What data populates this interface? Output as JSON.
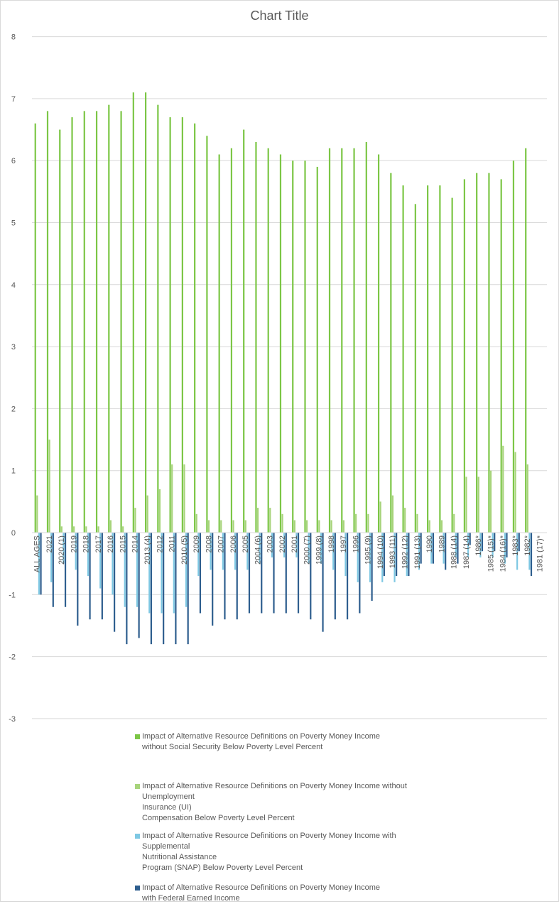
{
  "chart_data": {
    "type": "bar",
    "title": "Chart Title",
    "xlabel": "",
    "ylabel": "",
    "ylim": [
      -3,
      8
    ],
    "y_ticks": [
      -3,
      -2,
      -1,
      0,
      1,
      2,
      3,
      4,
      5,
      6,
      7,
      8
    ],
    "grid": true,
    "legend_position": "bottom",
    "categories": [
      "ALL AGES",
      "2021",
      "2020 (1)",
      "2019",
      "2018",
      "2017",
      "2016",
      "2015",
      "2014",
      "2013 (4)",
      "2012",
      "2011",
      "2010 (5)",
      "2009",
      "2008",
      "2007",
      "2006",
      "2005",
      "2004 (6)",
      "2003",
      "2002",
      "2001",
      "2000 (7)",
      "1999 (8)",
      "1998",
      "1997",
      "1996",
      "1995 (9)",
      "1994 (10)",
      "1993 (11)",
      "1992 (12)",
      "1991 (13)",
      "1990",
      "1989",
      "1988 (14)",
      "1987 (14)",
      "1986*",
      "1985 (15)*",
      "1984 (16)*",
      "1983*",
      "1982*",
      "1981 (17)*"
    ],
    "series": [
      {
        "name": "Impact of Alternative Resource Definitions on Poverty Money Income\nwithout Social Security Below Poverty Level Percent",
        "color": "#7cc646",
        "values": [
          6.6,
          6.8,
          6.5,
          6.7,
          6.8,
          6.8,
          6.9,
          6.8,
          7.1,
          7.1,
          6.9,
          6.7,
          6.7,
          6.6,
          6.4,
          6.1,
          6.2,
          6.5,
          6.3,
          6.2,
          6.1,
          6.0,
          6.0,
          5.9,
          6.2,
          6.2,
          6.2,
          6.3,
          6.1,
          5.8,
          5.6,
          5.3,
          5.6,
          5.6,
          5.4,
          5.7,
          5.8,
          5.8,
          5.7,
          6.0,
          6.2,
          null
        ]
      },
      {
        "name": "Impact of Alternative Resource Definitions on Poverty Money Income without\nUnemployment\nInsurance (UI)\nCompensation Below Poverty Level Percent",
        "color": "#a8d47c",
        "values": [
          0.6,
          1.5,
          0.1,
          0.1,
          0.1,
          0.1,
          0.2,
          0.1,
          0.4,
          0.6,
          0.7,
          1.1,
          1.1,
          0.3,
          0.2,
          0.2,
          0.2,
          0.2,
          0.4,
          0.4,
          0.3,
          0.2,
          0.2,
          0.2,
          0.2,
          0.2,
          0.3,
          0.3,
          0.5,
          0.6,
          0.4,
          0.3,
          0.2,
          0.2,
          0.3,
          0.9,
          0.9,
          1.0,
          1.4,
          1.3,
          1.1,
          null
        ]
      },
      {
        "name": "Impact of Alternative Resource Definitions on Poverty Money Income with\nSupplemental\nNutritional Assistance\nProgram (SNAP) Below Poverty Level Percent",
        "color": "#7ec8e3",
        "values": [
          -1.0,
          -0.8,
          -0.5,
          -0.6,
          -0.7,
          -0.9,
          -1.0,
          -1.2,
          -1.2,
          -1.3,
          -1.3,
          -1.3,
          -1.2,
          -0.7,
          -0.6,
          -0.6,
          -0.6,
          -0.6,
          -0.5,
          -0.4,
          -0.4,
          -0.4,
          -0.5,
          -0.5,
          -0.6,
          -0.7,
          -0.8,
          -0.8,
          -0.8,
          -0.8,
          -0.7,
          -0.6,
          -0.5,
          -0.5,
          -0.4,
          -0.4,
          -0.4,
          -0.4,
          -0.5,
          -0.6,
          -0.6,
          null
        ]
      },
      {
        "name": "Impact of Alternative Resource Definitions on Poverty Money Income\nwith Federal Earned Income",
        "color": "#2e5e8e",
        "values": [
          -1.0,
          -1.2,
          -1.2,
          -1.5,
          -1.4,
          -1.4,
          -1.6,
          -1.8,
          -1.7,
          -1.8,
          -1.8,
          -1.8,
          -1.8,
          -1.3,
          -1.5,
          -1.4,
          -1.4,
          -1.3,
          -1.3,
          -1.3,
          -1.3,
          -1.3,
          -1.4,
          -1.6,
          -1.4,
          -1.4,
          -1.3,
          -1.1,
          -0.7,
          -0.7,
          -0.7,
          -0.5,
          -0.5,
          -0.6,
          -0.5,
          -0.2,
          -0.3,
          -0.3,
          -0.4,
          -0.3,
          -0.7,
          null
        ]
      }
    ]
  }
}
